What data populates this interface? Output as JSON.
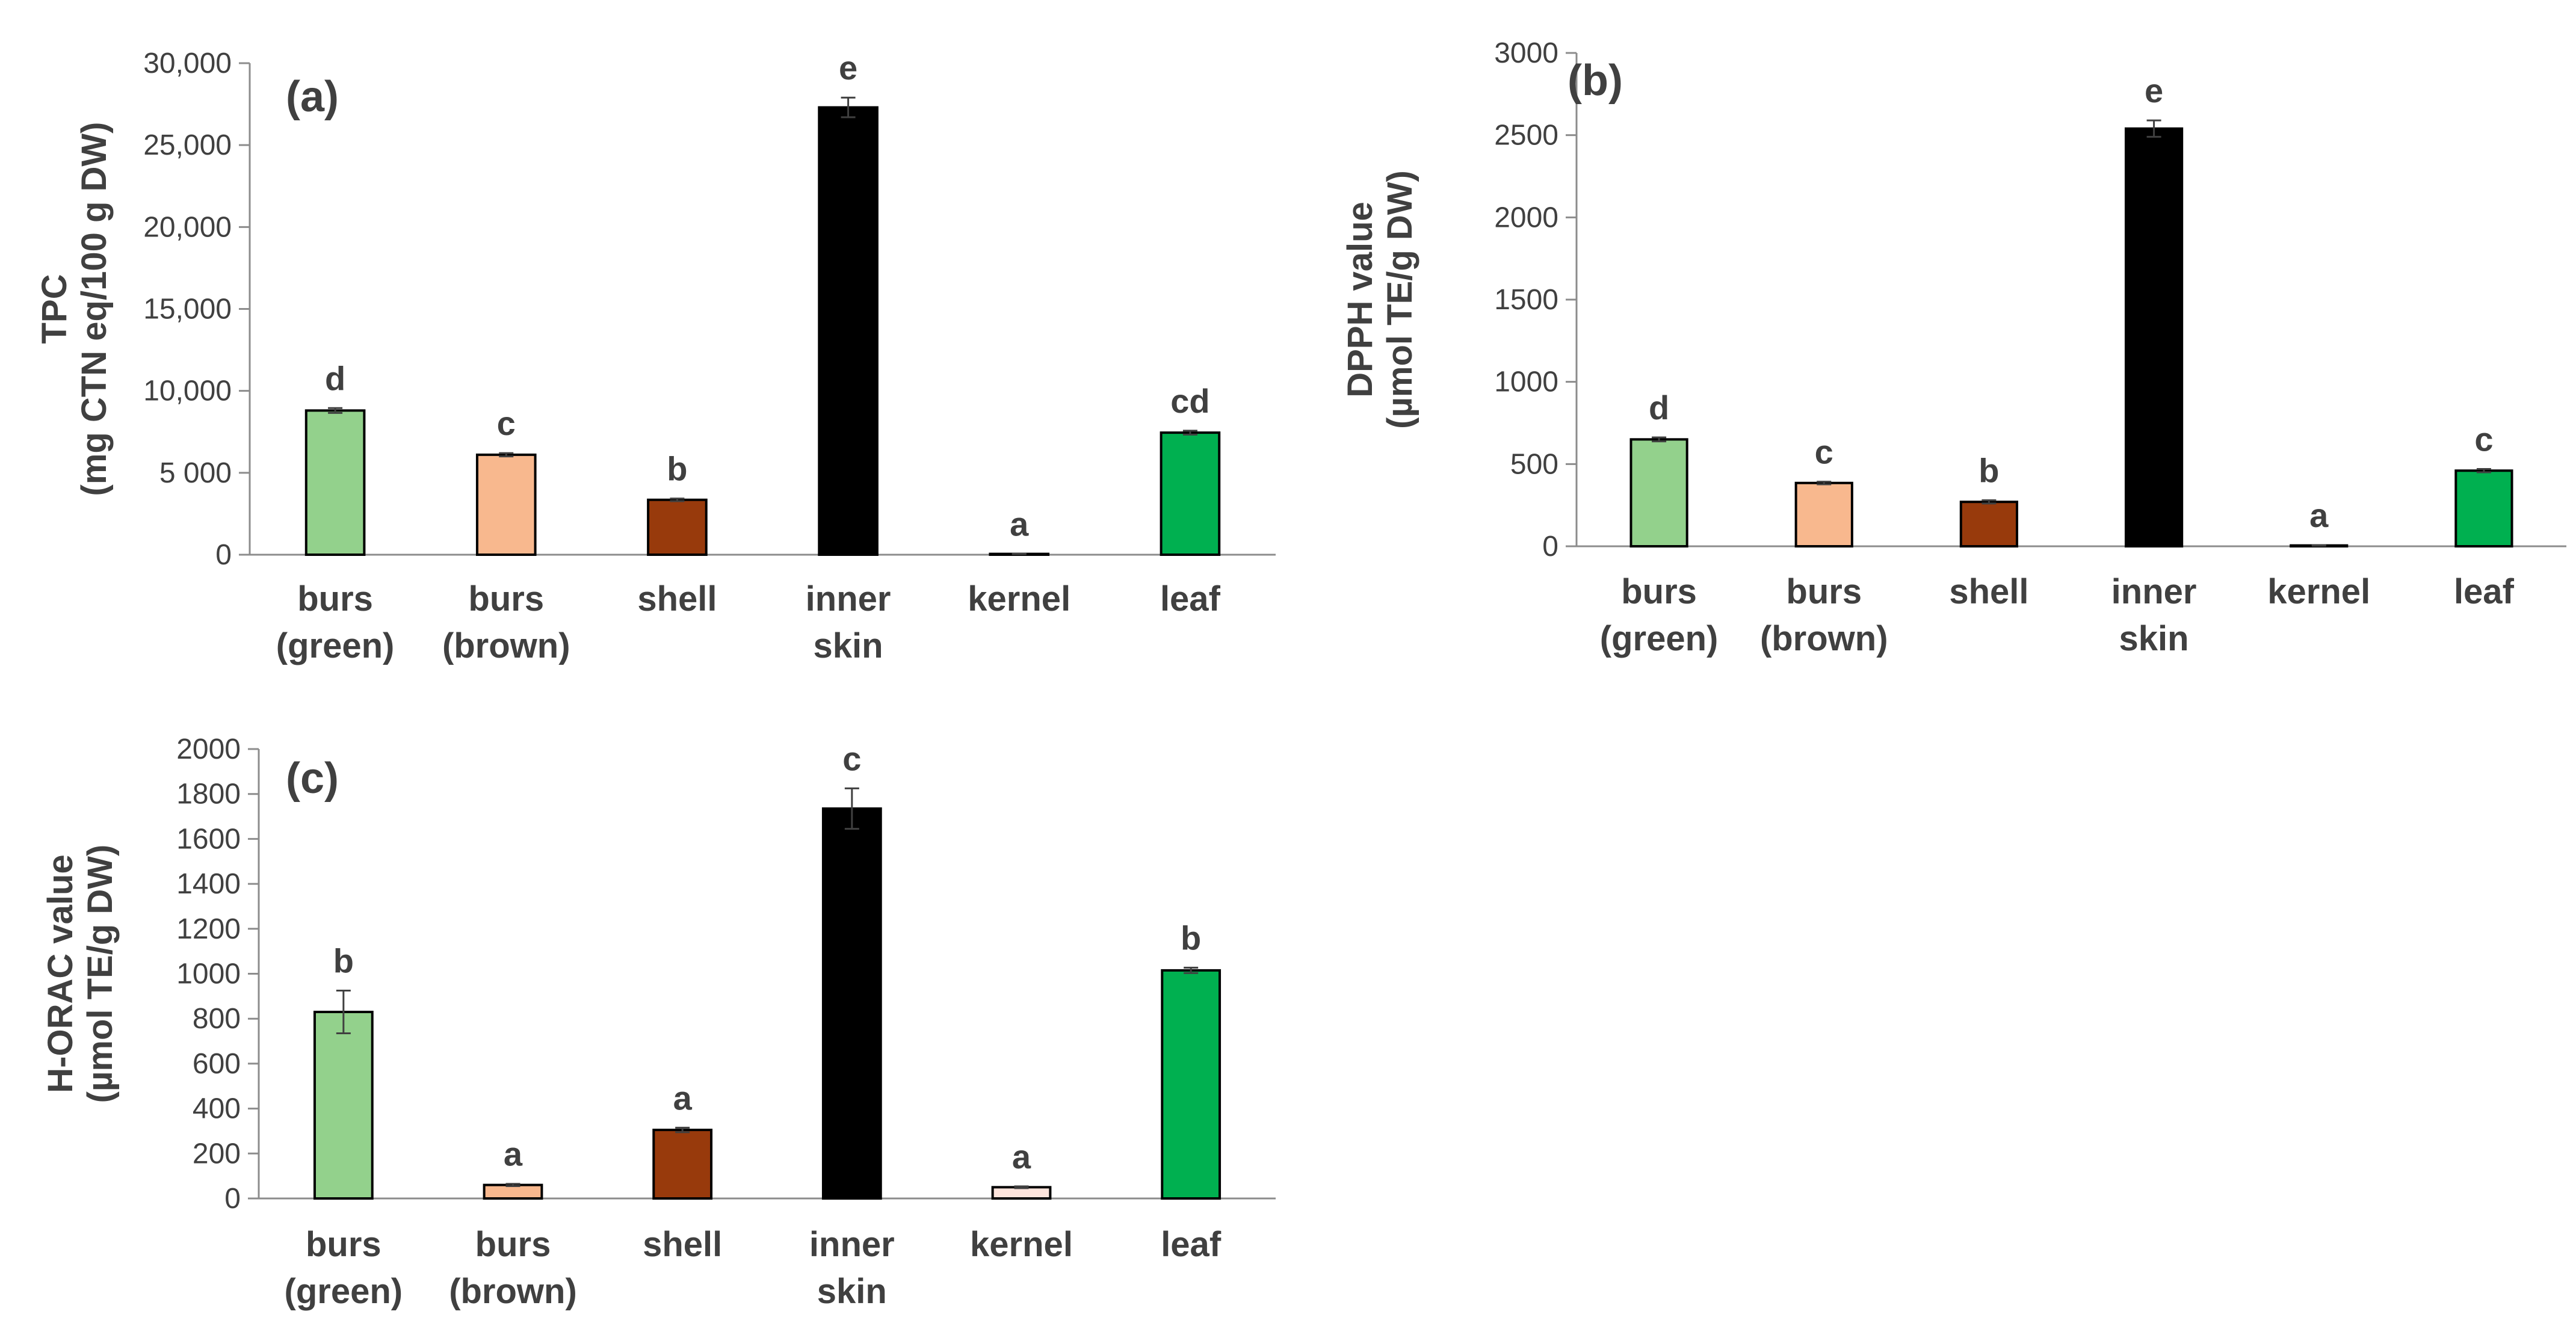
{
  "chart_data": [
    {
      "type": "bar",
      "panel_label": "(a)",
      "ylabel": [
        "TPC",
        "(mg CTN eq/100 g DW)"
      ],
      "ylim": [
        0,
        30000
      ],
      "yticks": [
        0,
        5000,
        10000,
        15000,
        20000,
        25000,
        30000
      ],
      "ytick_labels": [
        "0",
        "5 000",
        "10,000",
        "15,000",
        "20,000",
        "25,000",
        "30,000"
      ],
      "categories": [
        [
          "burs",
          "(green)"
        ],
        [
          "burs",
          "(brown)"
        ],
        [
          "shell"
        ],
        [
          "inner",
          "skin"
        ],
        [
          "kernel"
        ],
        [
          "leaf"
        ]
      ],
      "values": [
        8800,
        6100,
        3350,
        27300,
        50,
        7450
      ],
      "errors": [
        150,
        100,
        80,
        600,
        10,
        120
      ],
      "significance": [
        "d",
        "c",
        "b",
        "e",
        "a",
        "cd"
      ],
      "colors": [
        "#93d18c",
        "#f8b88e",
        "#983a0c",
        "#000000",
        "#fde4dc",
        "#00b050"
      ]
    },
    {
      "type": "bar",
      "panel_label": "(b)",
      "ylabel": [
        "DPPH value",
        "(µmol TE/g DW)"
      ],
      "ylim": [
        0,
        3000
      ],
      "yticks": [
        0,
        500,
        1000,
        1500,
        2000,
        2500,
        3000
      ],
      "ytick_labels": [
        "0",
        "500",
        "1000",
        "1500",
        "2000",
        "2500",
        "3000"
      ],
      "categories": [
        [
          "burs",
          "(green)"
        ],
        [
          "burs",
          "(brown)"
        ],
        [
          "shell"
        ],
        [
          "inner",
          "skin"
        ],
        [
          "kernel"
        ],
        [
          "leaf"
        ]
      ],
      "values": [
        650,
        385,
        270,
        2540,
        5,
        460
      ],
      "errors": [
        12,
        8,
        10,
        50,
        2,
        10
      ],
      "significance": [
        "d",
        "c",
        "b",
        "e",
        "a",
        "c"
      ],
      "colors": [
        "#93d18c",
        "#f8b88e",
        "#983a0c",
        "#000000",
        "#fde4dc",
        "#00b050"
      ]
    },
    {
      "type": "bar",
      "panel_label": "(c)",
      "ylabel": [
        "H-ORAC value",
        "(µmol TE/g DW)"
      ],
      "ylim": [
        0,
        2000
      ],
      "yticks": [
        0,
        200,
        400,
        600,
        800,
        1000,
        1200,
        1400,
        1600,
        1800,
        2000
      ],
      "ytick_labels": [
        "0",
        "200",
        "400",
        "600",
        "800",
        "1000",
        "1200",
        "1400",
        "1600",
        "1800",
        "2000"
      ],
      "categories": [
        [
          "burs",
          "(green)"
        ],
        [
          "burs",
          "(brown)"
        ],
        [
          "shell"
        ],
        [
          "inner",
          "skin"
        ],
        [
          "kernel"
        ],
        [
          "leaf"
        ]
      ],
      "values": [
        830,
        60,
        305,
        1735,
        50,
        1015
      ],
      "errors": [
        95,
        5,
        10,
        90,
        4,
        12
      ],
      "significance": [
        "b",
        "a",
        "a",
        "c",
        "a",
        "b"
      ],
      "colors": [
        "#93d18c",
        "#f8b88e",
        "#983a0c",
        "#000000",
        "#fde4dc",
        "#00b050"
      ]
    }
  ]
}
